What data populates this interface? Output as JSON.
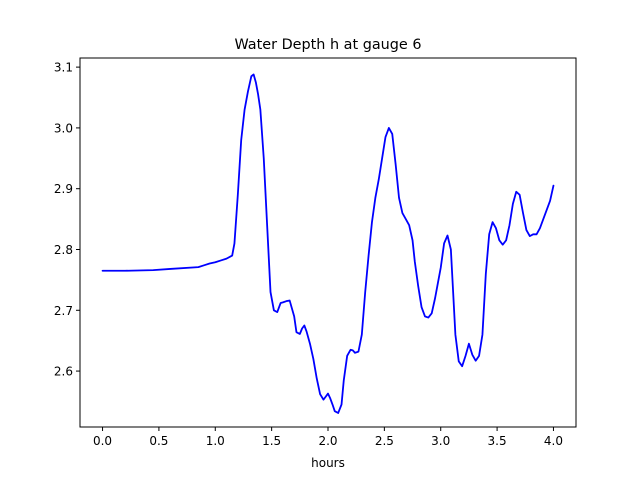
{
  "chart_data": {
    "type": "line",
    "title": "Water Depth h at gauge 6",
    "xlabel": "hours",
    "ylabel": "",
    "xlim": [
      -0.2,
      4.2
    ],
    "ylim": [
      2.508,
      3.115
    ],
    "x_ticks": [
      0.0,
      0.5,
      1.0,
      1.5,
      2.0,
      2.5,
      3.0,
      3.5,
      4.0
    ],
    "x_tick_labels": [
      "0.0",
      "0.5",
      "1.0",
      "1.5",
      "2.0",
      "2.5",
      "3.0",
      "3.5",
      "4.0"
    ],
    "y_ticks": [
      2.6,
      2.7,
      2.8,
      2.9,
      3.0,
      3.1
    ],
    "y_tick_labels": [
      "2.6",
      "2.7",
      "2.8",
      "2.9",
      "3.0",
      "3.1"
    ],
    "grid": false,
    "legend": "none",
    "series": [
      {
        "color": "#0000ff",
        "x": [
          0.0,
          0.2,
          0.45,
          0.6,
          0.85,
          0.9,
          0.95,
          1.0,
          1.05,
          1.1,
          1.15,
          1.17,
          1.2,
          1.23,
          1.26,
          1.29,
          1.32,
          1.34,
          1.36,
          1.38,
          1.4,
          1.43,
          1.46,
          1.49,
          1.52,
          1.55,
          1.58,
          1.6,
          1.63,
          1.66,
          1.7,
          1.72,
          1.75,
          1.77,
          1.79,
          1.81,
          1.84,
          1.87,
          1.9,
          1.93,
          1.96,
          1.98,
          2.0,
          2.02,
          2.04,
          2.06,
          2.09,
          2.12,
          2.14,
          2.17,
          2.2,
          2.22,
          2.24,
          2.27,
          2.3,
          2.33,
          2.36,
          2.39,
          2.42,
          2.45,
          2.48,
          2.51,
          2.54,
          2.57,
          2.6,
          2.63,
          2.66,
          2.69,
          2.72,
          2.75,
          2.77,
          2.8,
          2.83,
          2.86,
          2.89,
          2.92,
          2.95,
          2.97,
          3.0,
          3.03,
          3.06,
          3.09,
          3.11,
          3.13,
          3.16,
          3.19,
          3.22,
          3.25,
          3.28,
          3.31,
          3.34,
          3.37,
          3.4,
          3.43,
          3.46,
          3.49,
          3.52,
          3.55,
          3.58,
          3.61,
          3.64,
          3.67,
          3.7,
          3.73,
          3.76,
          3.79,
          3.82,
          3.85,
          3.88,
          3.91,
          3.94,
          3.97,
          4.0
        ],
        "y": [
          2.765,
          2.765,
          2.766,
          2.768,
          2.771,
          2.774,
          2.777,
          2.779,
          2.782,
          2.785,
          2.79,
          2.81,
          2.89,
          2.98,
          3.03,
          3.06,
          3.085,
          3.088,
          3.075,
          3.055,
          3.03,
          2.95,
          2.84,
          2.73,
          2.7,
          2.697,
          2.712,
          2.713,
          2.715,
          2.716,
          2.69,
          2.664,
          2.661,
          2.67,
          2.675,
          2.665,
          2.645,
          2.62,
          2.588,
          2.562,
          2.553,
          2.558,
          2.563,
          2.555,
          2.545,
          2.534,
          2.531,
          2.545,
          2.585,
          2.625,
          2.635,
          2.634,
          2.63,
          2.632,
          2.66,
          2.73,
          2.79,
          2.845,
          2.885,
          2.915,
          2.95,
          2.985,
          3.0,
          2.99,
          2.94,
          2.885,
          2.86,
          2.85,
          2.84,
          2.815,
          2.78,
          2.74,
          2.705,
          2.69,
          2.688,
          2.695,
          2.72,
          2.74,
          2.77,
          2.81,
          2.823,
          2.8,
          2.73,
          2.66,
          2.616,
          2.608,
          2.625,
          2.645,
          2.627,
          2.617,
          2.625,
          2.66,
          2.76,
          2.825,
          2.845,
          2.835,
          2.815,
          2.808,
          2.815,
          2.84,
          2.875,
          2.895,
          2.89,
          2.86,
          2.832,
          2.822,
          2.825,
          2.825,
          2.835,
          2.85,
          2.865,
          2.88,
          2.905
        ]
      }
    ]
  }
}
